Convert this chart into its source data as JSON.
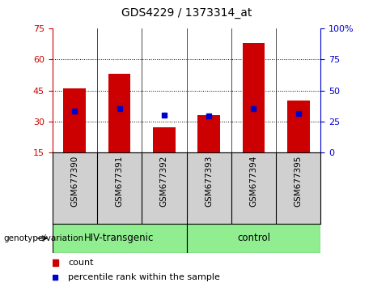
{
  "title": "GDS4229 / 1373314_at",
  "categories": [
    "GSM677390",
    "GSM677391",
    "GSM677392",
    "GSM677393",
    "GSM677394",
    "GSM677395"
  ],
  "bar_values": [
    46,
    53,
    27,
    33,
    68,
    40
  ],
  "percentile_values": [
    33,
    35,
    30,
    29,
    35,
    31
  ],
  "bar_color": "#cc0000",
  "percentile_color": "#0000cc",
  "left_ylim": [
    15,
    75
  ],
  "left_yticks": [
    15,
    30,
    45,
    60,
    75
  ],
  "right_ylim": [
    0,
    100
  ],
  "right_yticks": [
    0,
    25,
    50,
    75,
    100
  ],
  "right_yticklabels": [
    "0",
    "25",
    "50",
    "75",
    "100%"
  ],
  "group_labels": [
    "HIV-transgenic",
    "control"
  ],
  "group_ranges": [
    [
      0,
      3
    ],
    [
      3,
      6
    ]
  ],
  "group_color": "#90ee90",
  "xlabel_left": "genotype/variation",
  "legend_items": [
    "count",
    "percentile rank within the sample"
  ],
  "xtick_bg_color": "#d0d0d0",
  "plot_bg": "#ffffff",
  "left_axis_color": "#cc0000",
  "right_axis_color": "#0000cc",
  "bar_width": 0.5
}
